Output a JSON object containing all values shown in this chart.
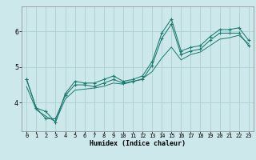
{
  "xlabel": "Humidex (Indice chaleur)",
  "ylabel": "",
  "background_color": "#cce8ea",
  "grid_color": "#aad0d4",
  "line_color": "#1a7a6e",
  "x_ticks": [
    0,
    1,
    2,
    3,
    4,
    5,
    6,
    7,
    8,
    9,
    10,
    11,
    12,
    13,
    14,
    15,
    16,
    17,
    18,
    19,
    20,
    21,
    22,
    23
  ],
  "y_ticks": [
    4,
    5,
    6
  ],
  "xlim": [
    -0.5,
    23.5
  ],
  "ylim": [
    3.2,
    6.7
  ],
  "line1_x": [
    0,
    1,
    2,
    3,
    4,
    5,
    6,
    7,
    8,
    9,
    10,
    11,
    12,
    13,
    14,
    15,
    16,
    17,
    18,
    19,
    20,
    21,
    22,
    23
  ],
  "line1_y": [
    4.65,
    3.85,
    3.75,
    3.45,
    4.25,
    4.6,
    4.55,
    4.55,
    4.65,
    4.75,
    4.6,
    4.65,
    4.75,
    5.15,
    5.95,
    6.35,
    5.45,
    5.55,
    5.6,
    5.85,
    6.05,
    6.05,
    6.1,
    5.75
  ],
  "line2_x": [
    0,
    1,
    2,
    3,
    4,
    5,
    6,
    7,
    8,
    9,
    10,
    11,
    12,
    13,
    14,
    15,
    16,
    17,
    18,
    19,
    20,
    21,
    22,
    23
  ],
  "line2_y": [
    4.65,
    3.85,
    3.55,
    3.55,
    4.2,
    4.5,
    4.5,
    4.45,
    4.55,
    4.65,
    4.55,
    4.6,
    4.65,
    5.05,
    5.8,
    6.2,
    5.35,
    5.45,
    5.5,
    5.75,
    5.95,
    5.95,
    5.95,
    5.6
  ],
  "line3_x": [
    0,
    1,
    2,
    3,
    4,
    5,
    6,
    7,
    8,
    9,
    10,
    11,
    12,
    13,
    14,
    15,
    16,
    17,
    18,
    19,
    20,
    21,
    22,
    23
  ],
  "line3_y": [
    4.45,
    3.8,
    3.62,
    3.47,
    4.1,
    4.35,
    4.38,
    4.41,
    4.46,
    4.55,
    4.52,
    4.59,
    4.67,
    4.87,
    5.25,
    5.56,
    5.2,
    5.35,
    5.42,
    5.6,
    5.78,
    5.82,
    5.89,
    5.65
  ],
  "xlabel_fontsize": 6,
  "tick_fontsize": 5,
  "ytick_fontsize": 6
}
